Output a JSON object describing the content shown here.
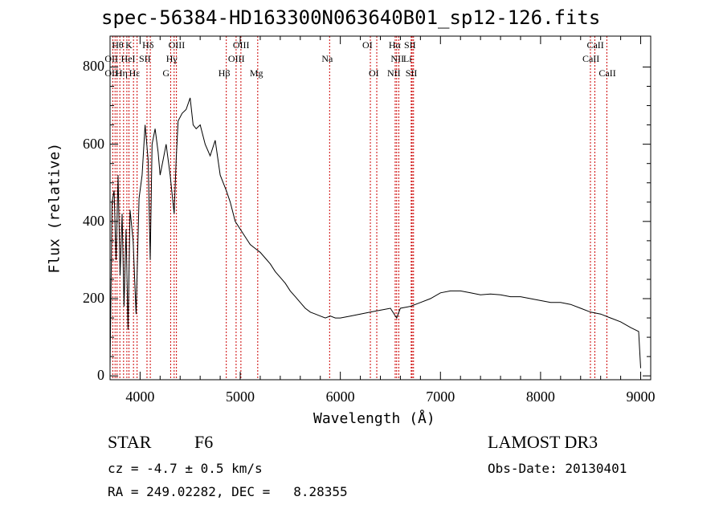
{
  "chart_data": {
    "type": "line",
    "title": "spec-56384-HD163300N063640B01_sp12-126.fits",
    "xlabel": "Wavelength (Å)",
    "ylabel": "Flux (relative)",
    "xlim": [
      3700,
      9100
    ],
    "ylim": [
      -10,
      880
    ],
    "x_ticks": [
      4000,
      5000,
      6000,
      7000,
      8000,
      9000
    ],
    "x_tick_labels": [
      "4000",
      "5000",
      "6000",
      "7000",
      "8000",
      "9000"
    ],
    "y_ticks": [
      0,
      200,
      400,
      600,
      800
    ],
    "y_tick_labels": [
      "0",
      "200",
      "400",
      "600",
      "800"
    ],
    "grid": false,
    "series": [
      {
        "color": "#000000",
        "x": [
          3700,
          3720,
          3740,
          3760,
          3780,
          3800,
          3820,
          3840,
          3860,
          3880,
          3900,
          3930,
          3960,
          3990,
          4020,
          4050,
          4080,
          4101,
          4120,
          4150,
          4180,
          4200,
          4230,
          4260,
          4300,
          4340,
          4360,
          4380,
          4420,
          4460,
          4500,
          4530,
          4560,
          4600,
          4650,
          4700,
          4750,
          4800,
          4861,
          4900,
          4950,
          5000,
          5050,
          5100,
          5150,
          5200,
          5250,
          5300,
          5350,
          5400,
          5450,
          5500,
          5550,
          5600,
          5650,
          5700,
          5750,
          5800,
          5850,
          5900,
          5950,
          6000,
          6100,
          6200,
          6300,
          6400,
          6500,
          6563,
          6600,
          6700,
          6800,
          6900,
          7000,
          7100,
          7200,
          7300,
          7400,
          7500,
          7600,
          7700,
          7800,
          7900,
          8000,
          8100,
          8200,
          8300,
          8400,
          8500,
          8600,
          8700,
          8800,
          8900,
          8980,
          9000
        ],
        "values": [
          20,
          450,
          480,
          300,
          520,
          260,
          420,
          180,
          380,
          120,
          430,
          350,
          160,
          460,
          520,
          650,
          560,
          300,
          600,
          640,
          580,
          520,
          560,
          600,
          520,
          420,
          560,
          660,
          680,
          690,
          720,
          650,
          640,
          650,
          600,
          570,
          610,
          520,
          480,
          450,
          400,
          380,
          360,
          340,
          330,
          320,
          305,
          290,
          270,
          255,
          240,
          220,
          205,
          190,
          175,
          165,
          160,
          155,
          150,
          155,
          150,
          150,
          155,
          160,
          165,
          170,
          175,
          150,
          175,
          180,
          190,
          200,
          215,
          220,
          220,
          215,
          210,
          212,
          210,
          205,
          205,
          200,
          195,
          190,
          190,
          185,
          175,
          165,
          160,
          150,
          140,
          125,
          115,
          20
        ]
      }
    ],
    "annotations": [
      {
        "label": "Hθ",
        "x": 3798,
        "row": 0
      },
      {
        "label": "K",
        "x": 3934,
        "row": 0
      },
      {
        "label": "Hδ",
        "x": 4102,
        "row": 0
      },
      {
        "label": "OIII",
        "x": 4363,
        "row": 0
      },
      {
        "label": "OIII",
        "x": 5007,
        "row": 0
      },
      {
        "label": "OI",
        "x": 6300,
        "row": 0
      },
      {
        "label": "Hα",
        "x": 6563,
        "row": 0
      },
      {
        "label": "SII",
        "x": 6717,
        "row": 0
      },
      {
        "label": "CaII",
        "x": 8542,
        "row": 0
      },
      {
        "label": "OII",
        "x": 3727,
        "row": 1
      },
      {
        "label": "HeI",
        "x": 3889,
        "row": 1
      },
      {
        "label": "SII",
        "x": 4069,
        "row": 1
      },
      {
        "label": "Hγ",
        "x": 4340,
        "row": 1
      },
      {
        "label": "OIII",
        "x": 4959,
        "row": 1
      },
      {
        "label": "Na",
        "x": 5893,
        "row": 1
      },
      {
        "label": "NII",
        "x": 6584,
        "row": 1
      },
      {
        "label": "Li",
        "x": 6708,
        "row": 1
      },
      {
        "label": "CaII",
        "x": 8498,
        "row": 1
      },
      {
        "label": "OII",
        "x": 3727,
        "row": 2
      },
      {
        "label": "Hη",
        "x": 3835,
        "row": 2
      },
      {
        "label": "Hε",
        "x": 3970,
        "row": 2
      },
      {
        "label": "G",
        "x": 4305,
        "row": 2
      },
      {
        "label": "Hβ",
        "x": 4861,
        "row": 2
      },
      {
        "label": "Mg",
        "x": 5175,
        "row": 2
      },
      {
        "label": "OI",
        "x": 6364,
        "row": 2
      },
      {
        "label": "NII",
        "x": 6548,
        "row": 2
      },
      {
        "label": "SII",
        "x": 6731,
        "row": 2
      },
      {
        "label": "CaII",
        "x": 8662,
        "row": 2
      }
    ],
    "line_markers": [
      3727,
      3750,
      3770,
      3798,
      3835,
      3868,
      3889,
      3934,
      3970,
      4069,
      4102,
      4305,
      4340,
      4363,
      4861,
      4959,
      5007,
      5175,
      5893,
      6300,
      6364,
      6548,
      6563,
      6584,
      6708,
      6717,
      6731,
      8498,
      8542,
      8662
    ]
  },
  "footer": {
    "object_class": "STAR",
    "subclass": "F6",
    "survey": "LAMOST DR3",
    "cz": "cz = -4.7 ± 0.5 km/s",
    "obs_date": "Obs-Date: 20130401",
    "coords": "RA = 249.02282, DEC =   8.28355"
  },
  "colors": {
    "spectrum": "#000000",
    "line_marker": "#cc0000",
    "axis": "#000000"
  }
}
